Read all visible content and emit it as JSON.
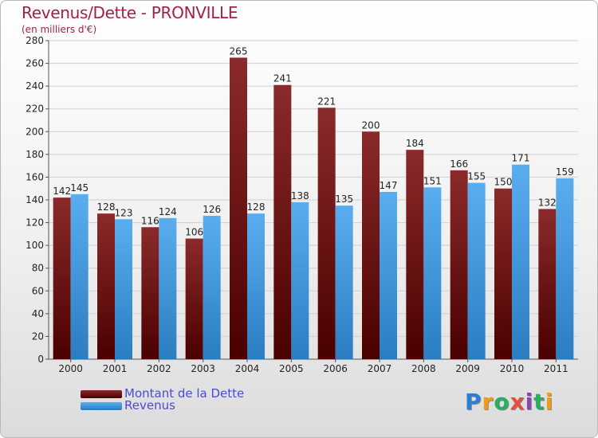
{
  "chart_data": {
    "type": "bar",
    "title": "Revenus/Dette - PRONVILLE",
    "subtitle": "(en milliers d'€)",
    "categories": [
      "2000",
      "2001",
      "2002",
      "2003",
      "2004",
      "2005",
      "2006",
      "2007",
      "2008",
      "2009",
      "2010",
      "2011"
    ],
    "series": [
      {
        "name": "Montant de la Dette",
        "color": "#7a1a1a",
        "values": [
          142,
          128,
          116,
          106,
          265,
          241,
          221,
          200,
          184,
          166,
          150,
          132
        ]
      },
      {
        "name": "Revenus",
        "color": "#3d9be0",
        "values": [
          145,
          123,
          124,
          126,
          128,
          138,
          135,
          147,
          151,
          155,
          171,
          159
        ]
      }
    ],
    "ylim": [
      0,
      280
    ],
    "ytick_step": 20,
    "yticks": [
      "0",
      "20",
      "40",
      "60",
      "80",
      "100",
      "120",
      "140",
      "160",
      "180",
      "200",
      "220",
      "240",
      "260",
      "280"
    ],
    "grid": true,
    "legend_position": "bottom-left"
  },
  "logo": {
    "letters": [
      "P",
      "r",
      "o",
      "x",
      "i",
      "t",
      "i"
    ],
    "colors": [
      "#2a7fd4",
      "#f39c12",
      "#27ae60",
      "#e74c3c",
      "#8e44ad",
      "#27ae60",
      "#f39c12"
    ]
  }
}
